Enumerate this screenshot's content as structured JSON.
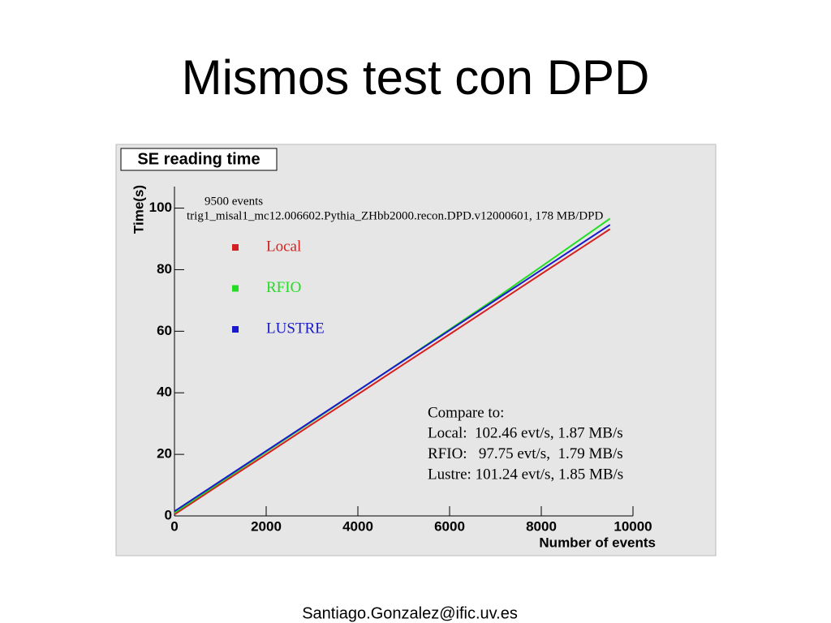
{
  "slide": {
    "title": "Mismos test con DPD",
    "footer": "Santiago.Gonzalez@ific.uv.es"
  },
  "chart_data": {
    "type": "line",
    "title": "SE reading time",
    "x_label": "Number of events",
    "y_label": "Time(s)",
    "annotations": [
      "9500 events",
      "trig1_misal1_mc12.006602.Pythia_ZHbb2000.recon.DPD.v12000601, 178 MB/DPD"
    ],
    "compare_box": [
      "Compare to:",
      "Local:  102.46 evt/s, 1.87 MB/s",
      "RFIO:   97.75 evt/s,  1.79 MB/s",
      "Lustre: 101.24 evt/s, 1.85 MB/s"
    ],
    "x": [
      0,
      1000,
      2000,
      3000,
      4000,
      5000,
      6000,
      7000,
      8000,
      9000,
      9500
    ],
    "series": [
      {
        "name": "Local",
        "color": "#d42020",
        "values": [
          0.5,
          10.3,
          20.0,
          29.8,
          39.5,
          49.3,
          59.0,
          68.8,
          78.6,
          88.3,
          93.2
        ]
      },
      {
        "name": "RFIO",
        "color": "#22dd22",
        "values": [
          1.0,
          10.9,
          20.8,
          30.7,
          40.6,
          50.6,
          60.6,
          70.6,
          81.0,
          91.4,
          96.6
        ]
      },
      {
        "name": "LUSTRE",
        "color": "#1a1acc",
        "values": [
          1.5,
          11.3,
          21.1,
          30.9,
          40.7,
          50.5,
          60.3,
          70.1,
          79.9,
          89.7,
          94.6
        ]
      }
    ],
    "xlim": [
      0,
      10000
    ],
    "xticks": [
      0,
      2000,
      4000,
      6000,
      8000,
      10000
    ],
    "ylim": [
      0,
      107
    ],
    "yticks": [
      0,
      20,
      40,
      60,
      80,
      100
    ],
    "legend": "upper-left"
  }
}
